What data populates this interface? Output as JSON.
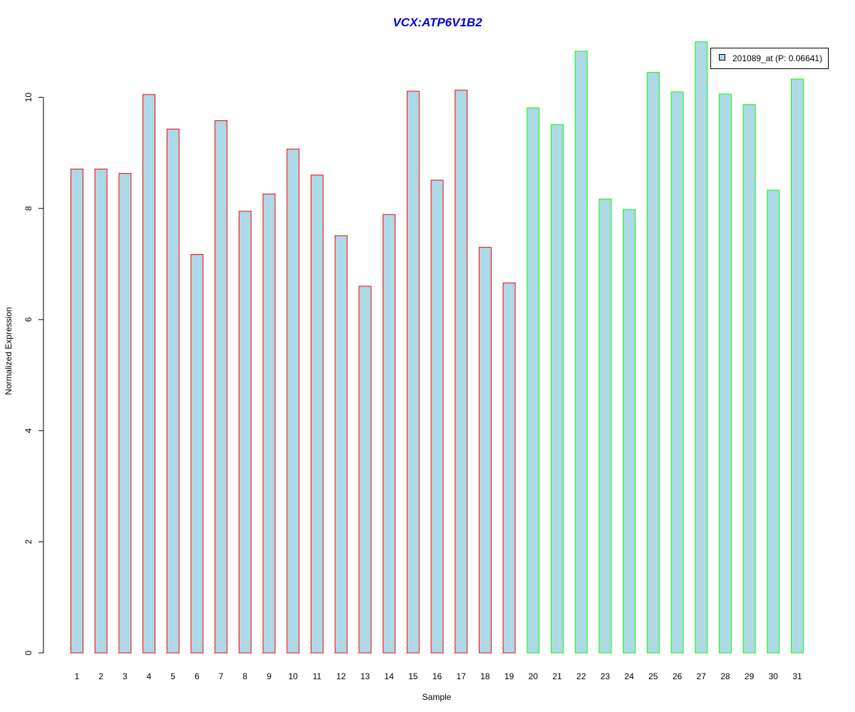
{
  "chart_data": {
    "type": "bar",
    "title": "VCX:ATP6V1B2",
    "xlabel": "Sample",
    "ylabel": "Normalized Expression",
    "categories": [
      "1",
      "2",
      "3",
      "4",
      "5",
      "6",
      "7",
      "8",
      "9",
      "10",
      "11",
      "12",
      "13",
      "14",
      "15",
      "16",
      "17",
      "18",
      "19",
      "20",
      "21",
      "22",
      "23",
      "24",
      "25",
      "26",
      "27",
      "28",
      "29",
      "30",
      "31"
    ],
    "series": [
      {
        "name": "201089_at (P: 0.06641)",
        "values": [
          8.71,
          8.71,
          8.63,
          10.05,
          9.43,
          7.17,
          9.58,
          7.95,
          8.26,
          9.07,
          8.6,
          7.51,
          6.6,
          7.89,
          10.11,
          8.51,
          10.13,
          7.3,
          6.66,
          9.81,
          9.51,
          10.83,
          8.17,
          7.98,
          10.45,
          10.1,
          11.0,
          10.06,
          9.87,
          8.33,
          10.33
        ]
      }
    ],
    "groups": [
      {
        "samples": [
          1,
          19
        ],
        "border_color": "#ff0000"
      },
      {
        "samples": [
          20,
          31
        ],
        "border_color": "#00ff00"
      }
    ],
    "ylim": [
      0,
      11
    ],
    "yticks": [
      0,
      2,
      4,
      6,
      8,
      10
    ],
    "grid": false,
    "legend_position": "top-right",
    "colors": {
      "bar_fill": "#add8e6",
      "title": "#0000dd",
      "axis": "#000000"
    }
  }
}
